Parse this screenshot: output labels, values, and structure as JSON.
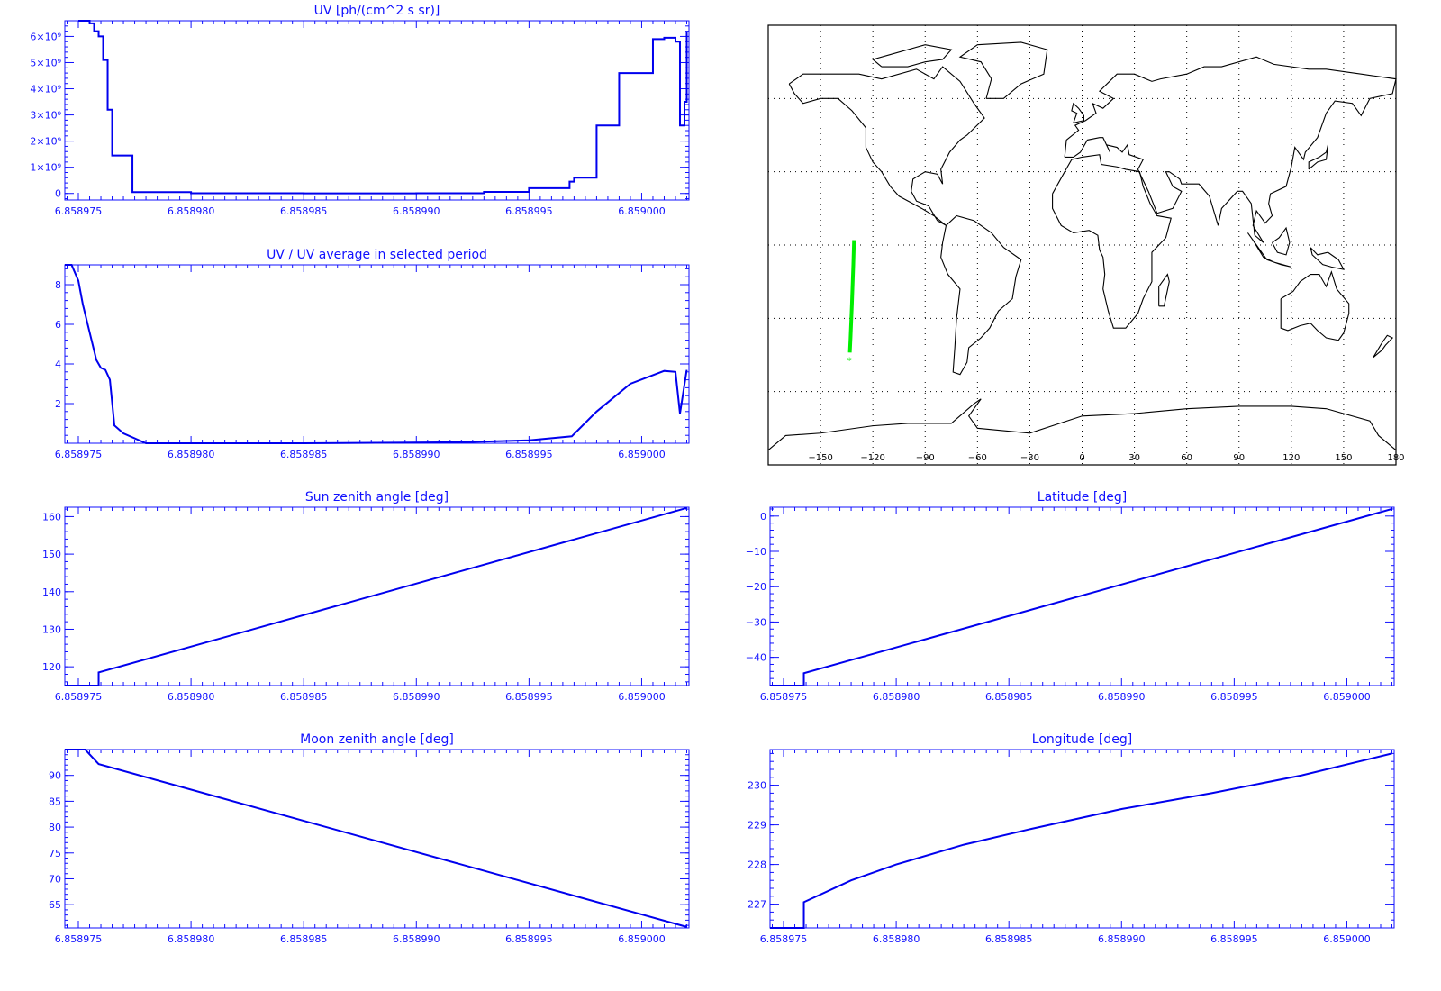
{
  "colors": {
    "axis": "#1010ff",
    "line": "#0000ee",
    "map_line": "#000000",
    "track": "#00ee00",
    "grid": "#000000"
  },
  "x_tick_labels": [
    "6.858975",
    "6.858980",
    "6.858985",
    "6.858990",
    "6.858995",
    "6.859000"
  ],
  "chart_data": [
    {
      "type": "line",
      "title": "UV [ph/(cm^2 s sr)]",
      "xlim": [
        6.8589744,
        6.8590021
      ],
      "ylim": [
        -250000000.0,
        6600000000.0
      ],
      "yticks": [
        0,
        1000000000.0,
        2000000000.0,
        3000000000.0,
        4000000000.0,
        5000000000.0,
        6000000000.0
      ],
      "ytick_labels": [
        "0",
        "1×10⁹",
        "2×10⁹",
        "3×10⁹",
        "4×10⁹",
        "5×10⁹",
        "6×10⁹"
      ],
      "step": true,
      "series": [
        {
          "x": [
            6.858975,
            6.8589755,
            6.8589757,
            6.8589759,
            6.8589761,
            6.8589763,
            6.8589765,
            6.8589767,
            6.8589772,
            6.8589774,
            6.85898,
            6.858985,
            6.85899,
            6.858993,
            6.858995,
            6.8589968,
            6.858997,
            6.858998,
            6.858999,
            6.8590005,
            6.859001,
            6.8590015,
            6.8590017,
            6.8590019,
            6.859002
          ],
          "y": [
            6600000000.0,
            6500000000.0,
            6200000000.0,
            6000000000.0,
            5100000000.0,
            3200000000.0,
            1450000000.0,
            1450000000.0,
            1450000000.0,
            50000000.0,
            10000000.0,
            5000000.0,
            10000000.0,
            60000000.0,
            200000000.0,
            450000000.0,
            600000000.0,
            2600000000.0,
            4600000000.0,
            5900000000.0,
            5950000000.0,
            5800000000.0,
            2600000000.0,
            3500000000.0,
            6200000000.0
          ]
        }
      ]
    },
    {
      "type": "line",
      "title": "UV / UV average in selected period",
      "xlim": [
        6.8589744,
        6.8590021
      ],
      "ylim": [
        0,
        9.0
      ],
      "yticks": [
        2,
        4,
        6,
        8
      ],
      "ytick_labels": [
        "2",
        "4",
        "6",
        "8"
      ],
      "series": [
        {
          "x": [
            6.8589744,
            6.8589747,
            6.858975,
            6.8589752,
            6.8589755,
            6.8589758,
            6.858976,
            6.8589762,
            6.8589764,
            6.8589766,
            6.858977,
            6.858978,
            6.858985,
            6.858992,
            6.858995,
            6.8589969,
            6.858998,
            6.8589995,
            6.859001,
            6.8590015,
            6.8590017,
            6.859002
          ],
          "y": [
            9.0,
            9.0,
            8.2,
            7.0,
            5.6,
            4.2,
            3.8,
            3.7,
            3.2,
            0.9,
            0.5,
            0.0,
            0.0,
            0.05,
            0.15,
            0.35,
            1.6,
            3.0,
            3.65,
            3.6,
            1.5,
            3.7
          ]
        }
      ]
    },
    {
      "type": "line",
      "title": "Sun zenith angle [deg]",
      "xlim": [
        6.8589744,
        6.8590021
      ],
      "ylim": [
        115,
        162.5
      ],
      "yticks": [
        120,
        130,
        140,
        150,
        160
      ],
      "ytick_labels": [
        "120",
        "130",
        "140",
        "150",
        "160"
      ],
      "series": [
        {
          "x": [
            6.8589744,
            6.8589759,
            6.8589759,
            6.859002
          ],
          "y": [
            115,
            115,
            118.5,
            162.3
          ]
        }
      ]
    },
    {
      "type": "line",
      "title": "Latitude [deg]",
      "xlim": [
        6.8589744,
        6.8590021
      ],
      "ylim": [
        -48,
        2.5
      ],
      "yticks": [
        0,
        -10,
        -20,
        -30,
        -40
      ],
      "ytick_labels": [
        "0",
        "−10",
        "−20",
        "−30",
        "−40"
      ],
      "series": [
        {
          "x": [
            6.8589744,
            6.8589759,
            6.8589759,
            6.859002
          ],
          "y": [
            -48,
            -48,
            -44.5,
            2.0
          ]
        }
      ]
    },
    {
      "type": "line",
      "title": "Moon zenith angle [deg]",
      "xlim": [
        6.8589744,
        6.8590021
      ],
      "ylim": [
        60.5,
        95.0
      ],
      "yticks": [
        65,
        70,
        75,
        80,
        85,
        90
      ],
      "ytick_labels": [
        "65",
        "70",
        "75",
        "80",
        "85",
        "90"
      ],
      "series": [
        {
          "x": [
            6.8589744,
            6.8589753,
            6.8589759,
            6.859002
          ],
          "y": [
            95.0,
            95.0,
            92.2,
            60.7
          ]
        }
      ]
    },
    {
      "type": "line",
      "title": "Longitude [deg]",
      "xlim": [
        6.8589744,
        6.8590021
      ],
      "ylim": [
        226.4,
        230.9
      ],
      "yticks": [
        227,
        228,
        229,
        230
      ],
      "ytick_labels": [
        "227",
        "228",
        "229",
        "230"
      ],
      "series": [
        {
          "x": [
            6.8589744,
            6.8589759,
            6.8589759,
            6.858978,
            6.85898,
            6.858983,
            6.858986,
            6.85899,
            6.858994,
            6.858998,
            6.859002
          ],
          "y": [
            226.4,
            226.4,
            227.05,
            227.6,
            228.0,
            228.5,
            228.9,
            229.4,
            229.8,
            230.25,
            230.8
          ]
        }
      ]
    }
  ],
  "map": {
    "type": "map",
    "xticks": [
      -150,
      -120,
      -90,
      -60,
      -30,
      0,
      30,
      60,
      90,
      120,
      150,
      180
    ],
    "xtick_labels": [
      "−150",
      "−120",
      "−90",
      "−60",
      "−30",
      "0",
      "30",
      "60",
      "90",
      "120",
      "150",
      "180"
    ],
    "lon_range": [
      -180,
      180
    ],
    "lat_range": [
      -90,
      90
    ],
    "lat_grid": [
      -60,
      -30,
      0,
      30,
      60
    ],
    "track": {
      "lon": [
        -130.8,
        -131.2,
        -131.6,
        -132.0,
        -132.4,
        -132.8,
        -133.2
      ],
      "lat": [
        2,
        -8,
        -16,
        -24,
        -31,
        -38,
        -44
      ]
    }
  }
}
